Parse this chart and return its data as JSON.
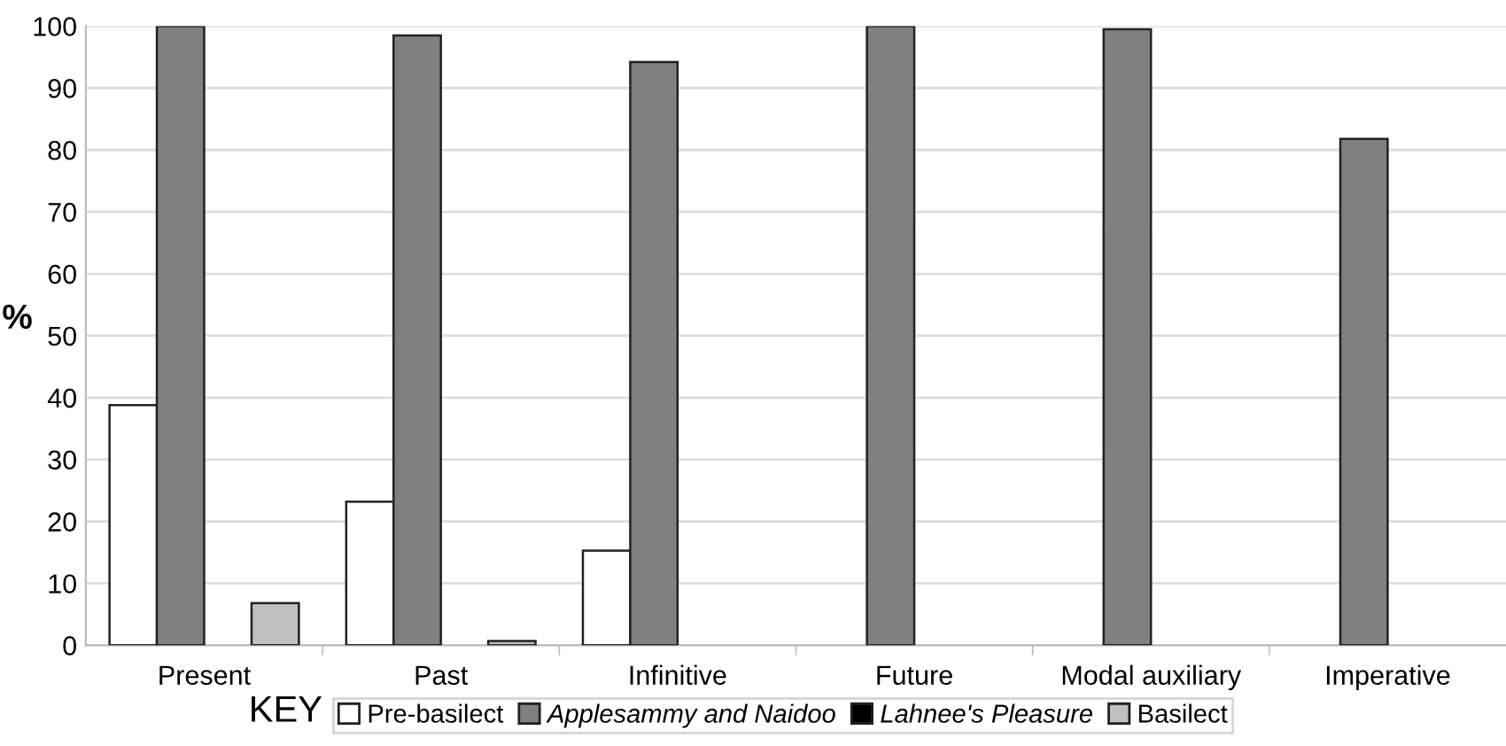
{
  "chart_data": {
    "type": "bar",
    "ylabel": "%",
    "categories": [
      "Present",
      "Past",
      "Infinitive",
      "Future",
      "Modal auxiliary",
      "Imperative"
    ],
    "series": [
      {
        "name": "Pre-basilect",
        "color": "#ffffff",
        "values": [
          38.8,
          23.2,
          15.3,
          null,
          null,
          null
        ]
      },
      {
        "name": "Applesammy and Naidoo",
        "color": "#808080",
        "values": [
          100,
          98.5,
          94.2,
          100,
          99.5,
          81.8
        ]
      },
      {
        "name": "Lahnee's Pleasure",
        "color": "#000000",
        "values": [
          null,
          null,
          null,
          null,
          null,
          null
        ]
      },
      {
        "name": "Basilect",
        "color": "#c0c0c0",
        "values": [
          6.8,
          0.7,
          null,
          null,
          null,
          null
        ]
      }
    ],
    "ylim": [
      0,
      100
    ],
    "yticks": [
      0,
      10,
      20,
      30,
      40,
      50,
      60,
      70,
      80,
      90,
      100
    ],
    "grid": "y",
    "legend": "bottom",
    "legend_title": "KEY"
  }
}
